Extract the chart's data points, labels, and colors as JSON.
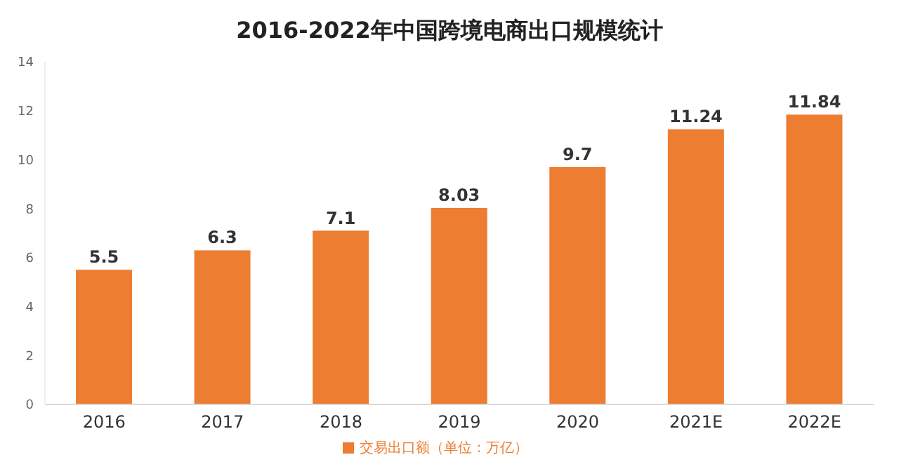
{
  "chart_data": {
    "type": "bar",
    "title": "2016-2022年中国跨境电商出口规模统计",
    "categories": [
      "2016",
      "2017",
      "2018",
      "2019",
      "2020",
      "2021E",
      "2022E"
    ],
    "series": [
      {
        "name": "交易出口额（单位：万亿）",
        "color": "#ed7d31",
        "values": [
          5.5,
          6.3,
          7.1,
          8.03,
          9.7,
          11.24,
          11.84
        ]
      }
    ],
    "ylim": [
      0,
      14
    ],
    "yticks": [
      0,
      2,
      4,
      6,
      8,
      10,
      12,
      14
    ],
    "data_labels": true,
    "legend": "bottom"
  }
}
